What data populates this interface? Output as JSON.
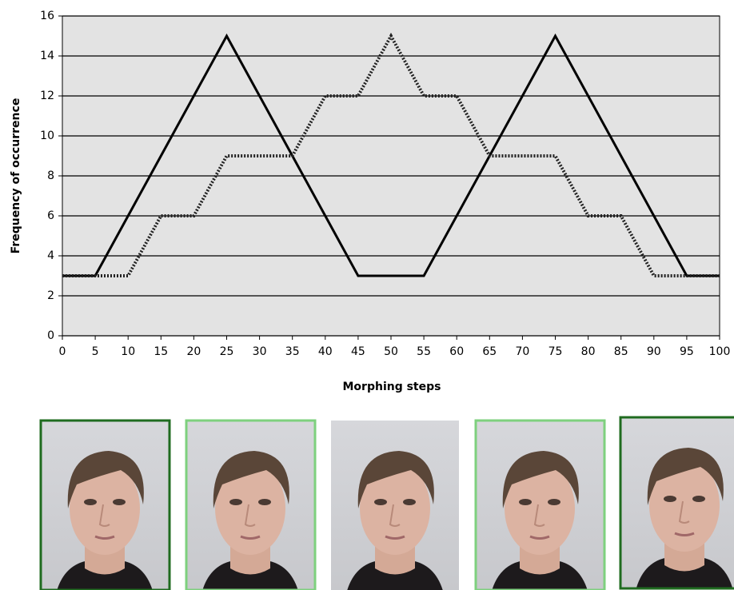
{
  "chart_data": {
    "type": "line",
    "x_label": "Morphing steps",
    "y_label": "Frequency of occurrence",
    "x": [
      0,
      5,
      10,
      15,
      20,
      25,
      30,
      35,
      40,
      45,
      50,
      55,
      60,
      65,
      70,
      75,
      80,
      85,
      90,
      95,
      100
    ],
    "series": [
      {
        "color": "#000000",
        "dashed": false,
        "values": [
          3,
          3,
          6,
          9,
          12,
          15,
          12,
          9,
          6,
          3,
          3,
          3,
          6,
          9,
          12,
          15,
          12,
          9,
          6,
          3,
          3
        ]
      },
      {
        "color": "#222222",
        "dashed": true,
        "values": [
          3,
          3,
          3,
          6,
          6,
          9,
          9,
          9,
          12,
          12,
          15,
          12,
          12,
          9,
          9,
          9,
          6,
          6,
          3,
          3,
          3
        ]
      }
    ],
    "xlim": [
      0,
      100
    ],
    "xticks": [
      0,
      5,
      10,
      15,
      20,
      25,
      30,
      35,
      40,
      45,
      50,
      55,
      60,
      65,
      70,
      75,
      80,
      85,
      90,
      95,
      100
    ],
    "ylim": [
      0,
      16
    ],
    "yticks": [
      0,
      2,
      4,
      6,
      8,
      10,
      12,
      14,
      16
    ],
    "grid": true,
    "background": "#e3e3e3"
  }
}
